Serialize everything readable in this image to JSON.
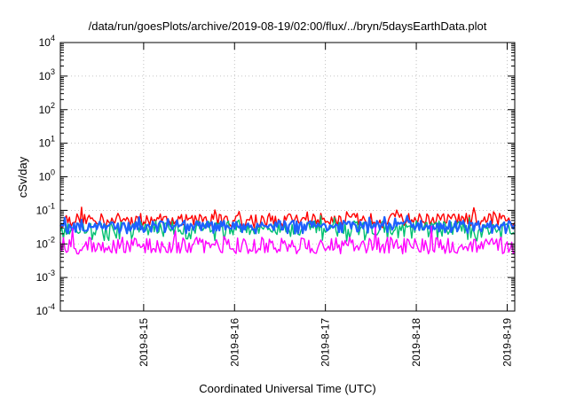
{
  "chart_data": {
    "type": "line",
    "title": "/data/run/goesPlots/archive/2019-08-19/02:00/flux/../bryn/5daysEarthData.plot",
    "xlabel": "Coordinated Universal Time (UTC)",
    "ylabel": "cSv/day",
    "yscale": "log",
    "ylim": [
      0.0001,
      10000
    ],
    "y_ticks": [
      {
        "base": "10",
        "exp": "-4",
        "value": 0.0001
      },
      {
        "base": "10",
        "exp": "-3",
        "value": 0.001
      },
      {
        "base": "10",
        "exp": "-2",
        "value": 0.01
      },
      {
        "base": "10",
        "exp": "-1",
        "value": 0.1
      },
      {
        "base": "10",
        "exp": "0",
        "value": 1
      },
      {
        "base": "10",
        "exp": "1",
        "value": 10
      },
      {
        "base": "10",
        "exp": "2",
        "value": 100
      },
      {
        "base": "10",
        "exp": "3",
        "value": 1000
      },
      {
        "base": "10",
        "exp": "4",
        "value": 10000
      }
    ],
    "xlim": [
      "2019-08-14 02:00",
      "2019-08-19 02:00"
    ],
    "x_ticks": [
      {
        "label": "2019-8-15",
        "date": "2019-08-15 00:00"
      },
      {
        "label": "2019-8-16",
        "date": "2019-08-16 00:00"
      },
      {
        "label": "2019-8-17",
        "date": "2019-08-17 00:00"
      },
      {
        "label": "2019-8-18",
        "date": "2019-08-18 00:00"
      },
      {
        "label": "2019-8-19",
        "date": "2019-08-19 00:00"
      }
    ],
    "grid": true,
    "series": [
      {
        "color": "#ff0000",
        "min": 0.03,
        "typical": 0.055,
        "max": 0.13
      },
      {
        "color": "#00c070",
        "min": 0.012,
        "typical": 0.03,
        "max": 0.07
      },
      {
        "color": "#1e60ff",
        "min": 0.02,
        "typical": 0.035,
        "max": 0.07
      },
      {
        "color": "#ff00ff",
        "min": 0.005,
        "typical": 0.009,
        "max": 0.04
      }
    ]
  }
}
